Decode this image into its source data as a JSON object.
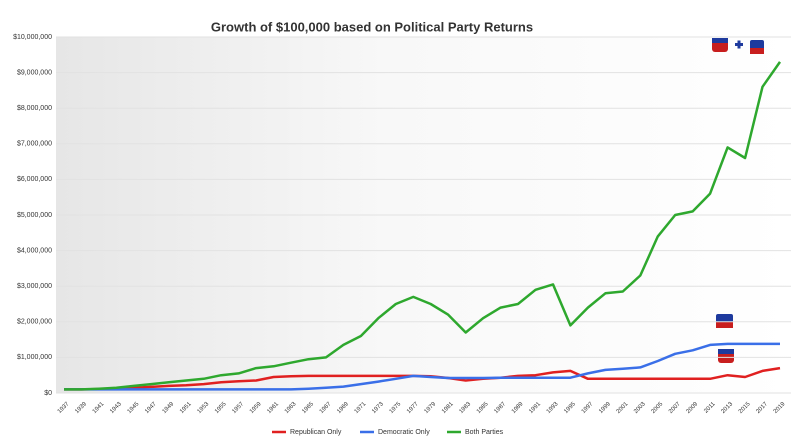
{
  "chart_data": {
    "type": "line",
    "title": "Growth of $100,000 based on Political Party Returns",
    "categories": [
      "1937",
      "1939",
      "1941",
      "1943",
      "1945",
      "1947",
      "1949",
      "1951",
      "1953",
      "1955",
      "1957",
      "1959",
      "1961",
      "1963",
      "1965",
      "1967",
      "1969",
      "1971",
      "1973",
      "1975",
      "1977",
      "1979",
      "1981",
      "1983",
      "1985",
      "1987",
      "1989",
      "1991",
      "1993",
      "1995",
      "1997",
      "1999",
      "2001",
      "2003",
      "2005",
      "2007",
      "2009",
      "2011",
      "2013",
      "2015",
      "2017",
      "2019"
    ],
    "series": [
      {
        "name": "Republican Only",
        "color": "#e02020",
        "values": [
          100000,
          100000,
          110000,
          120000,
          150000,
          170000,
          200000,
          220000,
          250000,
          300000,
          330000,
          350000,
          450000,
          470000,
          480000,
          480000,
          480000,
          480000,
          480000,
          480000,
          480000,
          470000,
          420000,
          350000,
          400000,
          430000,
          480000,
          500000,
          580000,
          620000,
          400000,
          400000,
          400000,
          400000,
          400000,
          400000,
          400000,
          400000,
          500000,
          450000,
          620000,
          700000
        ]
      },
      {
        "name": "Democratic Only",
        "color": "#3a6fe8",
        "values": [
          100000,
          100000,
          100000,
          100000,
          100000,
          100000,
          100000,
          100000,
          100000,
          100000,
          100000,
          100000,
          100000,
          100000,
          120000,
          150000,
          180000,
          250000,
          320000,
          400000,
          480000,
          450000,
          420000,
          420000,
          420000,
          430000,
          430000,
          430000,
          430000,
          430000,
          550000,
          650000,
          680000,
          720000,
          900000,
          1100000,
          1200000,
          1350000,
          1380000,
          1380000,
          1380000,
          1380000
        ]
      },
      {
        "name": "Both Parties",
        "color": "#2ea82e",
        "values": [
          100000,
          100000,
          120000,
          150000,
          200000,
          250000,
          300000,
          350000,
          400000,
          500000,
          550000,
          700000,
          750000,
          850000,
          950000,
          1000000,
          1350000,
          1600000,
          2100000,
          2500000,
          2700000,
          2500000,
          2200000,
          1700000,
          2100000,
          2400000,
          2500000,
          2900000,
          3050000,
          1900000,
          2400000,
          2800000,
          2850000,
          3300000,
          4400000,
          5000000,
          5100000,
          5600000,
          6900000,
          6600000,
          8600000,
          9300000
        ]
      }
    ],
    "ylim": [
      0,
      10000000
    ],
    "yticks": [
      {
        "value": 0,
        "label": "$0"
      },
      {
        "value": 1000000,
        "label": "$1,000,000"
      },
      {
        "value": 2000000,
        "label": "$2,000,000"
      },
      {
        "value": 3000000,
        "label": "$3,000,000"
      },
      {
        "value": 4000000,
        "label": "$4,000,000"
      },
      {
        "value": 5000000,
        "label": "$5,000,000"
      },
      {
        "value": 6000000,
        "label": "$6,000,000"
      },
      {
        "value": 7000000,
        "label": "$7,000,000"
      },
      {
        "value": 8000000,
        "label": "$8,000,000"
      },
      {
        "value": 9000000,
        "label": "$9,000,000"
      },
      {
        "value": 10000000,
        "label": "$10,000,000"
      }
    ],
    "grid": true,
    "legend": "bottom"
  }
}
